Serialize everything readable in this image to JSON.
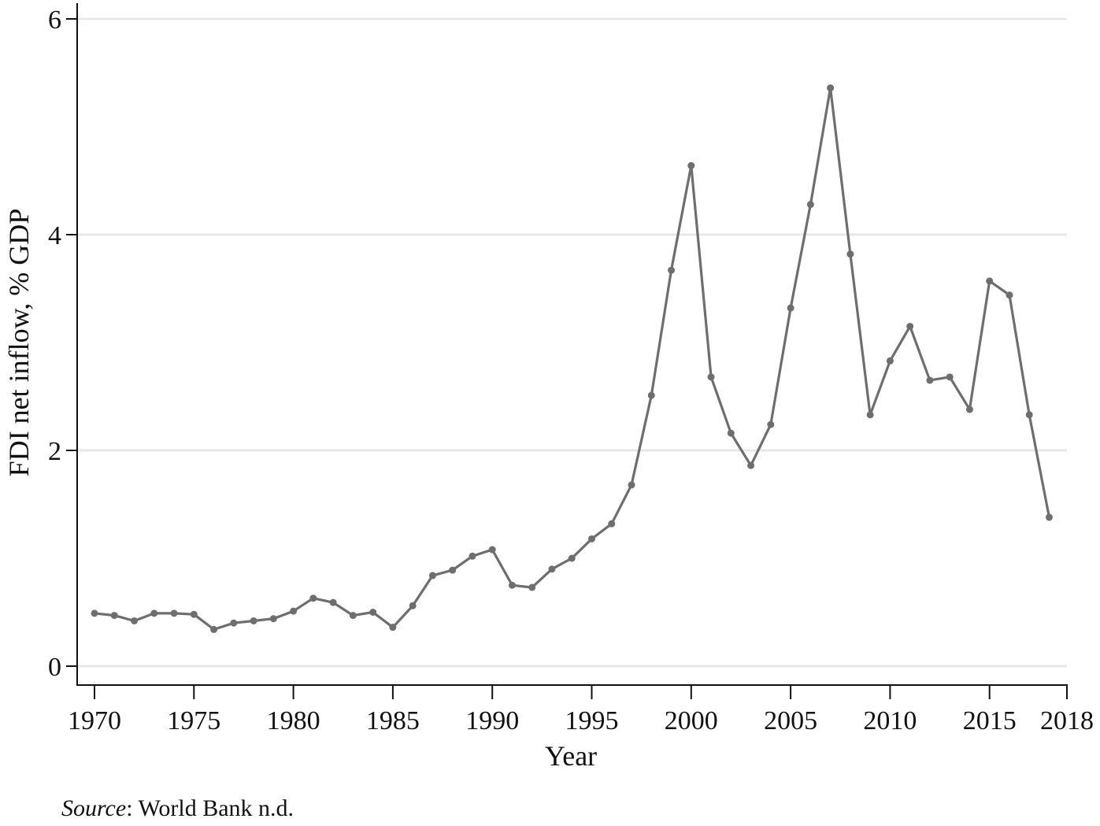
{
  "chart_data": {
    "type": "line",
    "title": "",
    "xlabel": "Year",
    "ylabel": "FDI net inflow, % GDP",
    "xlim": [
      1969,
      2018.9
    ],
    "ylim": [
      -0.2,
      6.2
    ],
    "x_ticks": [
      1970,
      1975,
      1980,
      1985,
      1990,
      1995,
      2000,
      2005,
      2010,
      2015,
      2018
    ],
    "x_tick_labels": [
      "1970",
      "1975",
      "1980",
      "1985",
      "1990",
      "1995",
      "2000",
      "2005",
      "2010",
      "2015",
      "2018"
    ],
    "y_ticks": [
      0,
      2,
      4,
      6
    ],
    "y_tick_labels": [
      "0",
      "2",
      "4",
      "6"
    ],
    "grid": "horizontal",
    "legend": null,
    "line_color": "#6e6e6e",
    "grid_color": "#e8e8e8",
    "series": [
      {
        "name": "FDI net inflow, % GDP",
        "x": [
          1970,
          1971,
          1972,
          1973,
          1974,
          1975,
          1976,
          1977,
          1978,
          1979,
          1980,
          1981,
          1982,
          1983,
          1984,
          1985,
          1986,
          1987,
          1988,
          1989,
          1990,
          1991,
          1992,
          1993,
          1994,
          1995,
          1996,
          1997,
          1998,
          1999,
          2000,
          2001,
          2002,
          2003,
          2004,
          2005,
          2006,
          2007,
          2008,
          2009,
          2010,
          2011,
          2012,
          2013,
          2014,
          2015,
          2016,
          2017,
          2018
        ],
        "values": [
          0.49,
          0.47,
          0.42,
          0.49,
          0.49,
          0.48,
          0.34,
          0.4,
          0.42,
          0.44,
          0.51,
          0.63,
          0.59,
          0.47,
          0.5,
          0.36,
          0.56,
          0.84,
          0.89,
          1.02,
          1.08,
          0.75,
          0.73,
          0.9,
          1.0,
          1.18,
          1.32,
          1.68,
          2.51,
          3.67,
          4.64,
          2.68,
          2.16,
          1.86,
          2.24,
          3.32,
          4.28,
          5.36,
          3.82,
          2.33,
          2.83,
          3.15,
          2.65,
          2.68,
          2.38,
          3.57,
          3.44,
          2.33,
          1.38
        ]
      }
    ]
  },
  "footer": {
    "source_label": "Source",
    "source_text": ": World Bank n.d."
  }
}
